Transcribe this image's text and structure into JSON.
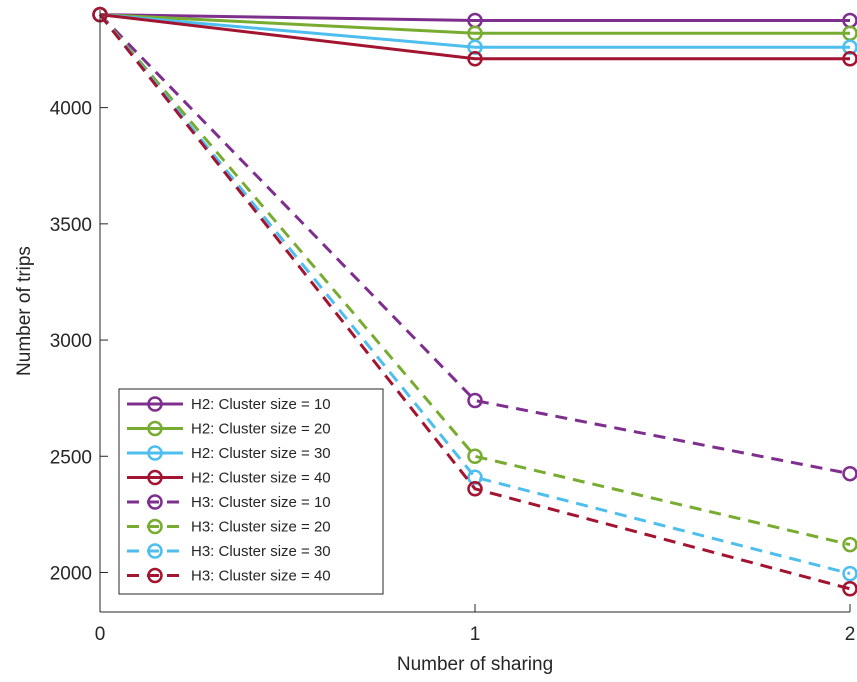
{
  "chart_data": {
    "type": "line",
    "title": "",
    "xlabel": "Number of sharing",
    "ylabel": "Number of trips",
    "x": [
      0,
      1,
      2
    ],
    "xlim": [
      0,
      2
    ],
    "ylim": [
      1830,
      4420
    ],
    "xticks": [
      0,
      1,
      2
    ],
    "yticks": [
      2000,
      2500,
      3000,
      3500,
      4000
    ],
    "grid": false,
    "legend_position": "bottom-left",
    "series": [
      {
        "name": "H2: Cluster size = 10",
        "color": "#7E2F8E",
        "dash": "solid",
        "values": [
          4400,
          4375,
          4375
        ]
      },
      {
        "name": "H2: Cluster size = 20",
        "color": "#77AC30",
        "dash": "solid",
        "values": [
          4400,
          4320,
          4320
        ]
      },
      {
        "name": "H2: Cluster size = 30",
        "color": "#4DBEEE",
        "dash": "solid",
        "values": [
          4400,
          4260,
          4260
        ]
      },
      {
        "name": "H2: Cluster size = 40",
        "color": "#A2142F",
        "dash": "solid",
        "values": [
          4400,
          4210,
          4210
        ]
      },
      {
        "name": "H3: Cluster size = 10",
        "color": "#7E2F8E",
        "dash": "dashed",
        "values": [
          4400,
          2740,
          2425
        ]
      },
      {
        "name": "H3: Cluster size = 20",
        "color": "#77AC30",
        "dash": "dashed",
        "values": [
          4400,
          2500,
          2120
        ]
      },
      {
        "name": "H3: Cluster size = 30",
        "color": "#4DBEEE",
        "dash": "dashed",
        "values": [
          4400,
          2410,
          1995
        ]
      },
      {
        "name": "H3: Cluster size = 40",
        "color": "#A2142F",
        "dash": "dashed",
        "values": [
          4400,
          2360,
          1930
        ]
      }
    ]
  }
}
